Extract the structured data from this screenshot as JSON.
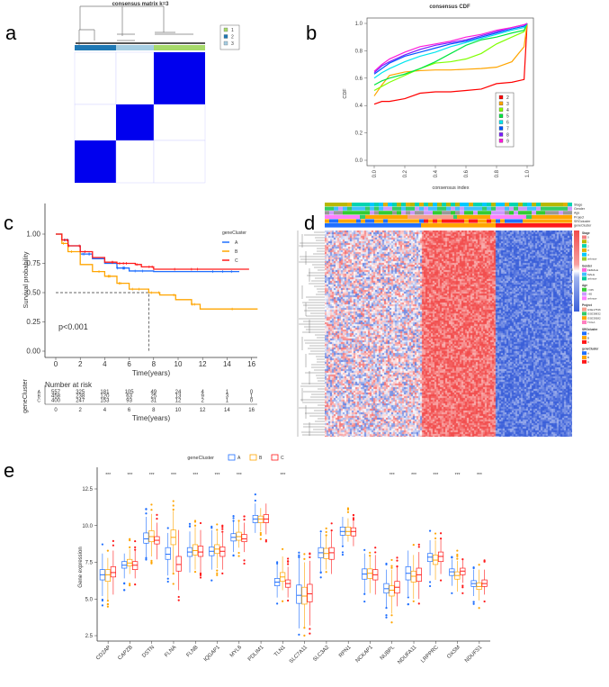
{
  "panel_labels": {
    "a": "a",
    "b": "b",
    "c": "c",
    "d": "d",
    "e": "e"
  },
  "colors": {
    "A": "#1f6fff",
    "B": "#ffa500",
    "C": "#ff1a1a",
    "heat_high": "#f24d4d",
    "heat_low": "#3a5fd9"
  },
  "chart_data": [
    {
      "id": "a",
      "type": "heatmap",
      "title": "consensus matrix k=3",
      "legend": [
        {
          "label": "1",
          "color": "#a6d96a"
        },
        {
          "label": "2",
          "color": "#1f78b4"
        },
        {
          "label": "3",
          "color": "#a6cee3"
        }
      ],
      "column_order": [
        "2",
        "3",
        "1"
      ],
      "blocks": [
        {
          "cluster": "1",
          "consensus": 1
        },
        {
          "cluster": "3",
          "consensus": 1
        },
        {
          "cluster": "2",
          "consensus": 1
        }
      ]
    },
    {
      "id": "b",
      "type": "line",
      "title": "consensus CDF",
      "xlabel": "consensus index",
      "ylabel": "CDF",
      "xlim": [
        0,
        1
      ],
      "ylim": [
        0,
        1
      ],
      "xticks": [
        "0.0",
        "0.2",
        "0.4",
        "0.6",
        "0.8",
        "1.0"
      ],
      "yticks": [
        "0.0",
        "0.2",
        "0.4",
        "0.6",
        "0.8",
        "1.0"
      ],
      "x": [
        0,
        0.05,
        0.1,
        0.2,
        0.3,
        0.4,
        0.5,
        0.6,
        0.7,
        0.8,
        0.9,
        0.98,
        1.0
      ],
      "series": [
        {
          "name": "2",
          "color": "#ff0000",
          "values": [
            0.41,
            0.43,
            0.43,
            0.45,
            0.49,
            0.5,
            0.5,
            0.51,
            0.52,
            0.56,
            0.57,
            0.59,
            1.0
          ]
        },
        {
          "name": "3",
          "color": "#ffa500",
          "values": [
            0.47,
            0.55,
            0.62,
            0.645,
            0.655,
            0.66,
            0.66,
            0.665,
            0.67,
            0.68,
            0.72,
            0.83,
            1.0
          ]
        },
        {
          "name": "4",
          "color": "#7fff00",
          "values": [
            0.51,
            0.54,
            0.57,
            0.62,
            0.67,
            0.71,
            0.72,
            0.74,
            0.78,
            0.85,
            0.9,
            0.94,
            1.0
          ]
        },
        {
          "name": "5",
          "color": "#00e640",
          "values": [
            0.55,
            0.58,
            0.6,
            0.63,
            0.67,
            0.72,
            0.78,
            0.84,
            0.88,
            0.9,
            0.93,
            0.95,
            1.0
          ]
        },
        {
          "name": "6",
          "color": "#00e5ee",
          "values": [
            0.6,
            0.64,
            0.67,
            0.72,
            0.76,
            0.79,
            0.83,
            0.86,
            0.89,
            0.92,
            0.95,
            0.97,
            1.0
          ]
        },
        {
          "name": "7",
          "color": "#0055ff",
          "values": [
            0.63,
            0.67,
            0.71,
            0.76,
            0.79,
            0.82,
            0.85,
            0.87,
            0.9,
            0.93,
            0.96,
            0.98,
            1.0
          ]
        },
        {
          "name": "8",
          "color": "#7a1fff",
          "values": [
            0.64,
            0.69,
            0.72,
            0.77,
            0.81,
            0.84,
            0.86,
            0.88,
            0.91,
            0.94,
            0.97,
            0.99,
            1.0
          ]
        },
        {
          "name": "9",
          "color": "#ff1ad9",
          "values": [
            0.65,
            0.7,
            0.74,
            0.79,
            0.83,
            0.85,
            0.87,
            0.9,
            0.92,
            0.95,
            0.97,
            0.99,
            1.0
          ]
        }
      ]
    },
    {
      "id": "c",
      "type": "line",
      "title": "",
      "xlabel": "Time(years)",
      "ylabel": "Survival probability",
      "xlim": [
        0,
        16.5
      ],
      "ylim": [
        0,
        1
      ],
      "xticks": [
        "0",
        "2",
        "4",
        "6",
        "8",
        "10",
        "12",
        "14",
        "16"
      ],
      "yticks": [
        "0.00",
        "0.25",
        "0.50",
        "0.75",
        "1.00"
      ],
      "legend_title": "geneCluster",
      "annotation": "p<0.001",
      "median_line": {
        "x": 7.6,
        "y": 0.5
      },
      "series": [
        {
          "name": "A",
          "color": "#1f6fff",
          "steps": [
            [
              0,
              1
            ],
            [
              0.5,
              0.95
            ],
            [
              1,
              0.9
            ],
            [
              2,
              0.83
            ],
            [
              3,
              0.79
            ],
            [
              4,
              0.75
            ],
            [
              5,
              0.71
            ],
            [
              6,
              0.685
            ],
            [
              8,
              0.68
            ],
            [
              15,
              0.68
            ]
          ]
        },
        {
          "name": "B",
          "color": "#ffa500",
          "steps": [
            [
              0,
              1
            ],
            [
              0.5,
              0.92
            ],
            [
              1,
              0.85
            ],
            [
              2,
              0.74
            ],
            [
              3,
              0.68
            ],
            [
              4,
              0.64
            ],
            [
              5,
              0.58
            ],
            [
              6,
              0.53
            ],
            [
              7.6,
              0.5
            ],
            [
              8.5,
              0.48
            ],
            [
              9.8,
              0.44
            ],
            [
              11.1,
              0.4
            ],
            [
              11.8,
              0.36
            ],
            [
              16.5,
              0.36
            ]
          ]
        },
        {
          "name": "C",
          "color": "#ff1a1a",
          "steps": [
            [
              0,
              1
            ],
            [
              0.5,
              0.95
            ],
            [
              1,
              0.9
            ],
            [
              2,
              0.85
            ],
            [
              3,
              0.8
            ],
            [
              4,
              0.76
            ],
            [
              5,
              0.75
            ],
            [
              6.5,
              0.74
            ],
            [
              7,
              0.72
            ],
            [
              8,
              0.7
            ],
            [
              15.8,
              0.7
            ]
          ]
        }
      ],
      "risk_table": {
        "title": "Number at risk",
        "ylabel": "geneCluster",
        "times": [
          "0",
          "2",
          "4",
          "6",
          "8",
          "10",
          "12",
          "14",
          "16"
        ],
        "rows": [
          {
            "name": "A",
            "values": [
              "557",
              "325",
              "181",
              "105",
              "49",
              "24",
              "4",
              "1",
              "0"
            ]
          },
          {
            "name": "B",
            "values": [
              "458",
              "238",
              "120",
              "63",
              "25",
              "13",
              "9",
              "3",
              "1"
            ]
          },
          {
            "name": "C",
            "values": [
              "400",
              "247",
              "153",
              "93",
              "31",
              "12",
              "2",
              "1",
              "0"
            ]
          }
        ],
        "xlabel": "Time(years)"
      }
    },
    {
      "id": "d",
      "type": "heatmap",
      "annotation_tracks": [
        "Stage",
        "Gender",
        "Age",
        "Project",
        "SRGcluster",
        "geneCluster"
      ],
      "colorbar_ticks": [
        "6",
        "4",
        "2",
        "0",
        "-2",
        "-4",
        "-6"
      ],
      "legends": [
        {
          "title": "Stage",
          "items": [
            {
              "label": "0",
              "color": "#f08080"
            },
            {
              "label": "1",
              "color": "#b8b800"
            },
            {
              "label": "2",
              "color": "#00d4b0"
            },
            {
              "label": "3",
              "color": "#e0b000"
            },
            {
              "label": "4",
              "color": "#00c8ff"
            },
            {
              "label": "unknow",
              "color": "#9acd32"
            }
          ]
        },
        {
          "title": "Gender",
          "items": [
            {
              "label": "FEMALE",
              "color": "#ff66d9"
            },
            {
              "label": "MALE",
              "color": "#40c0ff"
            },
            {
              "label": "unknow",
              "color": "#00cc99"
            }
          ]
        },
        {
          "title": "Age",
          "items": [
            {
              "label": "<=65",
              "color": "#33cc33"
            },
            {
              "label": ">65",
              "color": "#cc99ff"
            },
            {
              "label": "unknow",
              "color": "#ff80ff"
            }
          ]
        },
        {
          "title": "Project",
          "items": [
            {
              "label": "GSE17536",
              "color": "#f4a090"
            },
            {
              "label": "GSE38832",
              "color": "#33cc66"
            },
            {
              "label": "GSE39582",
              "color": "#ffa500"
            },
            {
              "label": "TCGA",
              "color": "#ff80c0"
            }
          ]
        },
        {
          "title": "SRGcluster",
          "items": [
            {
              "label": "A",
              "color": "#1f6fff"
            },
            {
              "label": "B",
              "color": "#ffa500"
            },
            {
              "label": "C",
              "color": "#ff1a1a"
            }
          ]
        },
        {
          "title": "geneCluster",
          "items": [
            {
              "label": "A",
              "color": "#1f6fff"
            },
            {
              "label": "B",
              "color": "#ffa500"
            },
            {
              "label": "C",
              "color": "#ff1a1a"
            }
          ]
        }
      ]
    },
    {
      "id": "e",
      "type": "box",
      "ylabel": "Gene expression",
      "legend_title": "geneCluster",
      "groups": [
        "A",
        "B",
        "C"
      ],
      "ylim": [
        2.2,
        13.6
      ],
      "yticks": [
        "2.5",
        "5.0",
        "7.5",
        "10.0",
        "12.5"
      ],
      "categories": [
        "CD2AP",
        "CAPZB",
        "DSTN",
        "FLNA",
        "FLNB",
        "IQGAP1",
        "MYL6",
        "PDLIM1",
        "TLN1",
        "SLC7A11",
        "SLC3A2",
        "RPN1",
        "NCKAP1",
        "NUBPL",
        "NDUFA11",
        "LRPPRC",
        "OXSM",
        "NDUFS1"
      ],
      "significance": [
        "***",
        "***",
        "***",
        "***",
        "***",
        "***",
        "***",
        "",
        "***",
        "",
        "",
        "",
        "",
        "***",
        "***",
        "***",
        "***",
        "***"
      ],
      "boxes": [
        [
          [
            5.2,
            6.3,
            6.65,
            7.0,
            8.1
          ],
          [
            4.9,
            6.2,
            6.65,
            7.0,
            7.8
          ],
          [
            5.3,
            6.5,
            6.8,
            7.2,
            8.3
          ]
        ],
        [
          [
            6.4,
            7.1,
            7.3,
            7.55,
            8.1
          ],
          [
            6.7,
            7.25,
            7.45,
            7.7,
            8.4
          ],
          [
            6.4,
            7.0,
            7.3,
            7.55,
            8.3
          ]
        ],
        [
          [
            7.8,
            8.8,
            9.1,
            9.5,
            10.6
          ],
          [
            7.9,
            8.9,
            9.25,
            9.65,
            10.8
          ],
          [
            7.7,
            8.75,
            9.0,
            9.25,
            10.2
          ]
        ],
        [
          [
            6.6,
            7.7,
            8.05,
            8.5,
            9.5
          ],
          [
            6.8,
            8.7,
            9.2,
            9.7,
            11.0
          ],
          [
            5.6,
            6.9,
            7.35,
            7.9,
            9.7
          ]
        ],
        [
          [
            6.8,
            7.9,
            8.2,
            8.5,
            9.6
          ],
          [
            7.0,
            8.0,
            8.3,
            8.7,
            9.9
          ],
          [
            6.8,
            7.9,
            8.2,
            8.6,
            9.7
          ]
        ],
        [
          [
            7.0,
            7.95,
            8.25,
            8.55,
            9.7
          ],
          [
            7.1,
            8.1,
            8.4,
            8.7,
            9.6
          ],
          [
            7.0,
            7.9,
            8.25,
            8.55,
            9.5
          ]
        ],
        [
          [
            8.2,
            8.95,
            9.2,
            9.45,
            10.3
          ],
          [
            8.5,
            9.0,
            9.25,
            9.55,
            10.3
          ],
          [
            8.2,
            8.9,
            9.1,
            9.4,
            10.2
          ]
        ],
        [
          [
            9.5,
            10.2,
            10.45,
            10.7,
            11.5
          ],
          [
            9.6,
            10.2,
            10.45,
            10.65,
            11.2
          ],
          [
            9.4,
            10.2,
            10.45,
            10.75,
            11.5
          ]
        ],
        [
          [
            5.1,
            5.9,
            6.15,
            6.4,
            7.4
          ],
          [
            5.6,
            6.2,
            6.5,
            6.8,
            7.9
          ],
          [
            5.1,
            5.8,
            6.05,
            6.3,
            7.2
          ]
        ],
        [
          [
            3.0,
            4.7,
            5.25,
            5.95,
            7.8
          ],
          [
            3.1,
            4.65,
            5.2,
            5.8,
            7.5
          ],
          [
            3.2,
            4.8,
            5.35,
            6.0,
            7.6
          ]
        ],
        [
          [
            6.9,
            7.8,
            8.15,
            8.5,
            9.5
          ],
          [
            7.0,
            7.75,
            8.1,
            8.45,
            9.3
          ],
          [
            6.7,
            7.7,
            8.15,
            8.5,
            9.6
          ]
        ],
        [
          [
            8.7,
            9.35,
            9.6,
            9.9,
            10.6
          ],
          [
            8.9,
            9.35,
            9.6,
            9.9,
            10.5
          ],
          [
            8.6,
            9.3,
            9.6,
            9.85,
            10.4
          ]
        ],
        [
          [
            5.4,
            6.35,
            6.7,
            7.05,
            8.1
          ],
          [
            5.4,
            6.4,
            6.75,
            7.05,
            7.9
          ],
          [
            5.3,
            6.3,
            6.65,
            7.0,
            8.0
          ]
        ],
        [
          [
            4.4,
            5.4,
            5.7,
            6.05,
            7.0
          ],
          [
            4.0,
            5.2,
            5.6,
            5.9,
            7.0
          ],
          [
            4.5,
            5.4,
            5.8,
            6.2,
            7.2
          ]
        ],
        [
          [
            5.2,
            6.3,
            6.75,
            7.2,
            8.3
          ],
          [
            5.0,
            6.15,
            6.55,
            6.9,
            8.0
          ],
          [
            5.0,
            6.2,
            6.65,
            7.1,
            8.2
          ]
        ],
        [
          [
            6.6,
            7.55,
            7.85,
            8.1,
            9.0
          ],
          [
            6.3,
            7.35,
            7.65,
            8.0,
            9.0
          ],
          [
            6.7,
            7.55,
            7.9,
            8.2,
            9.1
          ]
        ],
        [
          [
            5.9,
            6.6,
            6.85,
            7.05,
            7.7
          ],
          [
            5.5,
            6.35,
            6.6,
            6.85,
            7.6
          ],
          [
            6.1,
            6.65,
            6.9,
            7.1,
            7.7
          ]
        ],
        [
          [
            5.2,
            5.85,
            6.05,
            6.25,
            7.0
          ],
          [
            4.9,
            5.65,
            5.85,
            6.1,
            7.0
          ],
          [
            5.3,
            5.85,
            6.05,
            6.3,
            7.0
          ]
        ]
      ]
    }
  ]
}
